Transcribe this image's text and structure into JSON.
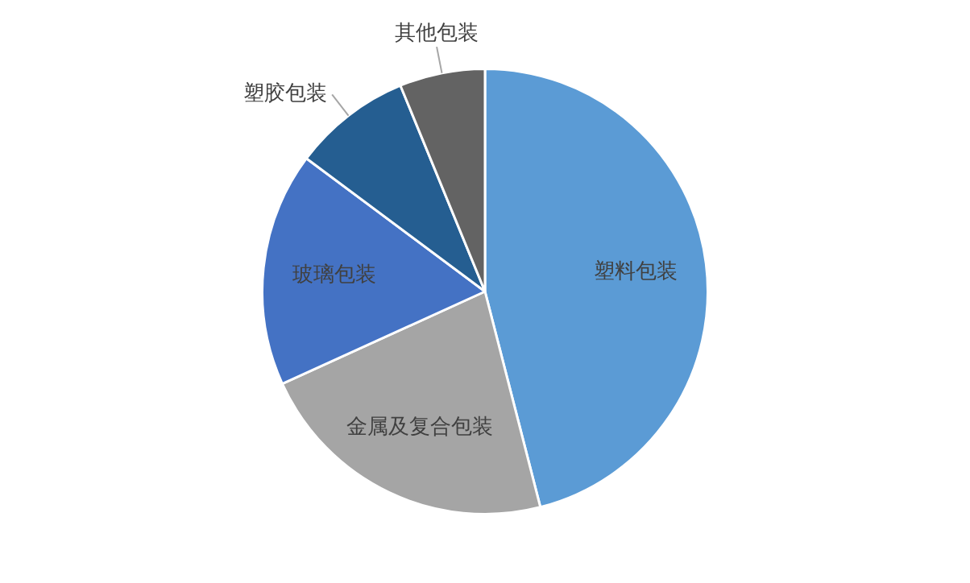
{
  "chart_data": {
    "type": "pie",
    "categories": [
      "塑料包装",
      "金属及复合包装",
      "玻璃包装",
      "塑胶包装",
      "其他包装"
    ],
    "values": [
      46,
      22.2,
      17,
      8.6,
      6.2
    ],
    "colors": [
      "#5b9bd5",
      "#a5a5a5",
      "#4472c4",
      "#255e91",
      "#636363"
    ],
    "legend": false
  }
}
